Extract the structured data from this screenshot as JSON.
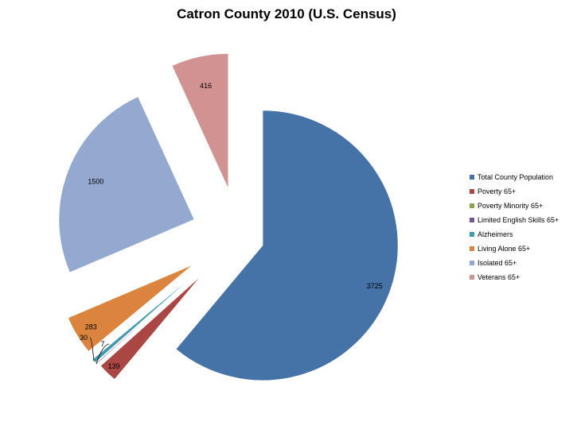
{
  "chart_data": {
    "type": "pie",
    "title": "Catron County 2010 (U.S. Census)",
    "categories": [
      "Total County Population",
      "Poverty 65+",
      "Poverty Minority 65+",
      "Limited English Skills 65+",
      "Alzheimers",
      "Living Alone 65+",
      "Isolated 65+",
      "Veterans 65+"
    ],
    "values": [
      3725,
      139,
      0,
      7,
      30,
      283,
      1500,
      416
    ],
    "data_labels": [
      "3725",
      "139",
      "",
      "7",
      "30",
      "283",
      "1500",
      "416"
    ],
    "colors": [
      "#4572a7",
      "#aa4643",
      "#89a54e",
      "#71588f",
      "#4198af",
      "#db843d",
      "#93a9cf",
      "#d19392"
    ],
    "legend_position": "right"
  }
}
